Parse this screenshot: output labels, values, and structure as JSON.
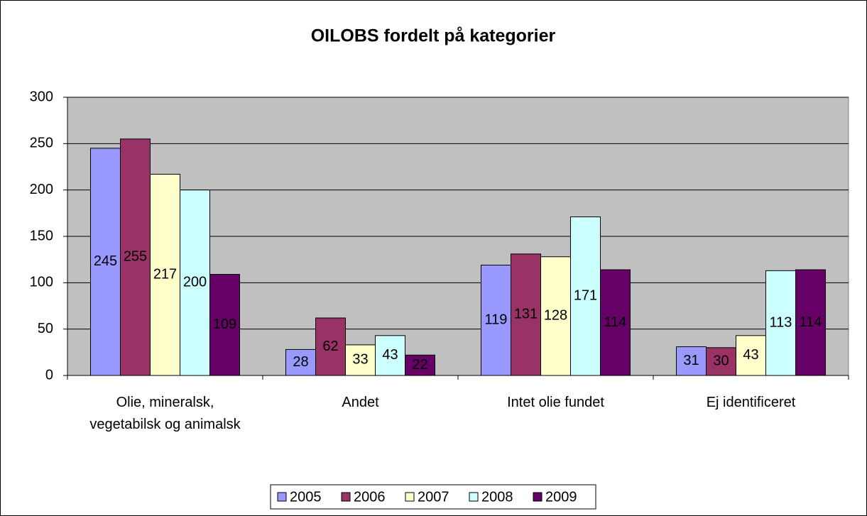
{
  "chart_data": {
    "type": "bar",
    "title": "OILOBS fordelt på kategorier",
    "categories": [
      "Olie, mineralsk, vegetabilsk og animalsk",
      "Andet",
      "Intet olie fundet",
      "Ej identificeret"
    ],
    "series": [
      {
        "name": "2005",
        "color": "#9999ff",
        "values": [
          245,
          28,
          119,
          31
        ]
      },
      {
        "name": "2006",
        "color": "#993366",
        "values": [
          255,
          62,
          131,
          30
        ]
      },
      {
        "name": "2007",
        "color": "#ffffcc",
        "values": [
          217,
          33,
          128,
          43
        ]
      },
      {
        "name": "2008",
        "color": "#ccffff",
        "values": [
          200,
          43,
          171,
          113
        ]
      },
      {
        "name": "2009",
        "color": "#660066",
        "values": [
          109,
          22,
          114,
          114
        ]
      }
    ],
    "ylim": [
      0,
      300
    ],
    "yticks": [
      0,
      50,
      100,
      150,
      200,
      250,
      300
    ],
    "grid": true,
    "legend": "bottom"
  }
}
